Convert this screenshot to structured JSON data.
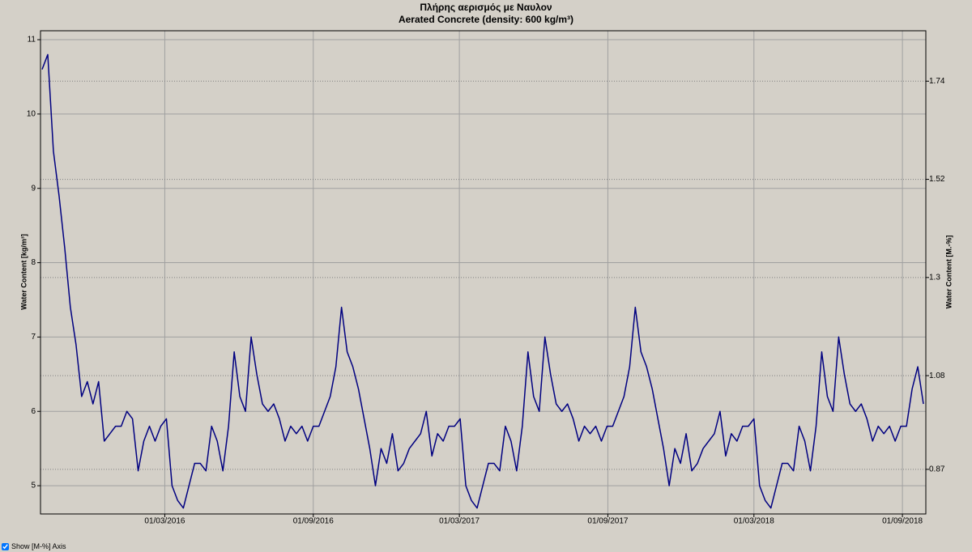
{
  "chart_data": {
    "type": "line",
    "title": "Πλήρης αερισμός με Ναυλον",
    "subtitle": "Aerated Concrete (density: 600 kg/m³)",
    "y_label": "Water Content [kg/m³]",
    "y2_label": "Water Content [M.-%]",
    "color": "#000080",
    "grid": true,
    "xlim": [
      "2015-09-29",
      "2018-09-30"
    ],
    "xticks": [
      {
        "value": "2016-03-01",
        "label": "01/03/2016"
      },
      {
        "value": "2016-09-01",
        "label": "01/09/2016"
      },
      {
        "value": "2017-03-01",
        "label": "01/03/2017"
      },
      {
        "value": "2017-09-01",
        "label": "01/09/2017"
      },
      {
        "value": "2018-03-01",
        "label": "01/03/2018"
      },
      {
        "value": "2018-09-01",
        "label": "01/09/2018"
      }
    ],
    "ylim": [
      4.62,
      11.12
    ],
    "yticks": [
      5,
      6,
      7,
      8,
      9,
      10,
      11
    ],
    "y2lim": [
      0.77,
      1.853
    ],
    "y2ticks": [
      0.87,
      1.08,
      1.3,
      1.52,
      1.74
    ],
    "x": [
      "2015-10-01",
      "2015-10-08",
      "2015-10-15",
      "2015-10-22",
      "2015-10-29",
      "2015-11-05",
      "2015-11-12",
      "2015-11-19",
      "2015-11-26",
      "2015-12-03",
      "2015-12-10",
      "2015-12-17",
      "2015-12-24",
      "2015-12-31",
      "2016-01-07",
      "2016-01-14",
      "2016-01-21",
      "2016-01-28",
      "2016-02-04",
      "2016-02-11",
      "2016-02-18",
      "2016-02-25",
      "2016-03-03",
      "2016-03-10",
      "2016-03-17",
      "2016-03-24",
      "2016-03-31",
      "2016-04-07",
      "2016-04-14",
      "2016-04-21",
      "2016-04-28",
      "2016-05-05",
      "2016-05-12",
      "2016-05-19",
      "2016-05-26",
      "2016-06-02",
      "2016-06-09",
      "2016-06-16",
      "2016-06-23",
      "2016-06-30",
      "2016-07-07",
      "2016-07-14",
      "2016-07-21",
      "2016-07-28",
      "2016-08-04",
      "2016-08-11",
      "2016-08-18",
      "2016-08-25",
      "2016-09-01",
      "2016-09-08",
      "2016-09-15",
      "2016-09-22",
      "2016-09-29",
      "2016-10-06",
      "2016-10-13",
      "2016-10-20",
      "2016-10-27",
      "2016-11-03",
      "2016-11-10",
      "2016-11-17",
      "2016-11-24",
      "2016-12-01",
      "2016-12-08",
      "2016-12-15",
      "2016-12-22",
      "2016-12-29",
      "2017-01-05",
      "2017-01-12",
      "2017-01-19",
      "2017-01-26",
      "2017-02-02",
      "2017-02-09",
      "2017-02-16",
      "2017-02-23",
      "2017-03-02",
      "2017-03-09",
      "2017-03-16",
      "2017-03-23",
      "2017-03-30",
      "2017-04-06",
      "2017-04-13",
      "2017-04-20",
      "2017-04-27",
      "2017-05-04",
      "2017-05-11",
      "2017-05-18",
      "2017-05-25",
      "2017-06-01",
      "2017-06-08",
      "2017-06-15",
      "2017-06-22",
      "2017-06-29",
      "2017-07-06",
      "2017-07-13",
      "2017-07-20",
      "2017-07-27",
      "2017-08-03",
      "2017-08-10",
      "2017-08-17",
      "2017-08-24",
      "2017-08-31",
      "2017-09-07",
      "2017-09-14",
      "2017-09-21",
      "2017-09-28",
      "2017-10-05",
      "2017-10-12",
      "2017-10-19",
      "2017-10-26",
      "2017-11-02",
      "2017-11-09",
      "2017-11-16",
      "2017-11-23",
      "2017-11-30",
      "2017-12-07",
      "2017-12-14",
      "2017-12-21",
      "2017-12-28",
      "2018-01-04",
      "2018-01-11",
      "2018-01-18",
      "2018-01-25",
      "2018-02-01",
      "2018-02-08",
      "2018-02-15",
      "2018-02-22",
      "2018-03-01",
      "2018-03-08",
      "2018-03-15",
      "2018-03-22",
      "2018-03-29",
      "2018-04-05",
      "2018-04-12",
      "2018-04-19",
      "2018-04-26",
      "2018-05-03",
      "2018-05-10",
      "2018-05-17",
      "2018-05-24",
      "2018-05-31",
      "2018-06-07",
      "2018-06-14",
      "2018-06-21",
      "2018-06-28",
      "2018-07-05",
      "2018-07-12",
      "2018-07-19",
      "2018-07-26",
      "2018-08-02",
      "2018-08-09",
      "2018-08-16",
      "2018-08-23",
      "2018-08-30",
      "2018-09-06",
      "2018-09-13",
      "2018-09-20",
      "2018-09-27"
    ],
    "values": [
      10.6,
      10.8,
      9.5,
      8.9,
      8.2,
      7.4,
      6.9,
      6.2,
      6.4,
      6.1,
      6.4,
      5.6,
      5.7,
      5.8,
      5.8,
      6.0,
      5.9,
      5.2,
      5.6,
      5.8,
      5.6,
      5.8,
      5.9,
      5.0,
      4.8,
      4.7,
      5.0,
      5.3,
      5.3,
      5.2,
      5.8,
      5.6,
      5.2,
      5.8,
      6.8,
      6.2,
      6.0,
      7.0,
      6.5,
      6.1,
      6.0,
      6.1,
      5.9,
      5.6,
      5.8,
      5.7,
      5.8,
      5.6,
      5.8,
      5.8,
      6.0,
      6.2,
      6.6,
      7.4,
      6.8,
      6.6,
      6.3,
      5.9,
      5.5,
      5.0,
      5.5,
      5.3,
      5.7,
      5.2,
      5.3,
      5.5,
      5.6,
      5.7,
      6.0,
      5.4,
      5.7,
      5.6,
      5.8,
      5.8,
      5.9,
      5.0,
      4.8,
      4.7,
      5.0,
      5.3,
      5.3,
      5.2,
      5.8,
      5.6,
      5.2,
      5.8,
      6.8,
      6.2,
      6.0,
      7.0,
      6.5,
      6.1,
      6.0,
      6.1,
      5.9,
      5.6,
      5.8,
      5.7,
      5.8,
      5.6,
      5.8,
      5.8,
      6.0,
      6.2,
      6.6,
      7.4,
      6.8,
      6.6,
      6.3,
      5.9,
      5.5,
      5.0,
      5.5,
      5.3,
      5.7,
      5.2,
      5.3,
      5.5,
      5.6,
      5.7,
      6.0,
      5.4,
      5.7,
      5.6,
      5.8,
      5.8,
      5.9,
      5.0,
      4.8,
      4.7,
      5.0,
      5.3,
      5.3,
      5.2,
      5.8,
      5.6,
      5.2,
      5.8,
      6.8,
      6.2,
      6.0,
      7.0,
      6.5,
      6.1,
      6.0,
      6.1,
      5.9,
      5.6,
      5.8,
      5.7,
      5.8,
      5.6,
      5.8,
      5.8,
      6.3,
      6.6,
      6.1
    ]
  },
  "controls": {
    "checkbox_label": "Show [M-%] Axis",
    "checked": true
  }
}
